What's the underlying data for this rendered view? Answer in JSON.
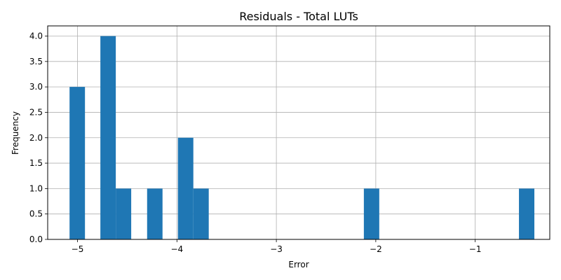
{
  "chart_data": {
    "type": "bar",
    "title": "Residuals - Total LUTs",
    "xlabel": "Error",
    "ylabel": "Frequency",
    "xlim": [
      -5.3,
      -0.25
    ],
    "ylim": [
      0,
      4.2
    ],
    "grid": true,
    "bar_color": "#1f77b4",
    "xticks": [
      -5,
      -4,
      -3,
      -2,
      -1
    ],
    "xtick_labels": [
      "−5",
      "−4",
      "−3",
      "−2",
      "−1"
    ],
    "yticks": [
      0,
      0.5,
      1,
      1.5,
      2,
      2.5,
      3,
      3.5,
      4
    ],
    "ytick_labels": [
      "0.0",
      "0.5",
      "1.0",
      "1.5",
      "2.0",
      "2.5",
      "3.0",
      "3.5",
      "4.0"
    ],
    "bins": [
      {
        "x0": -5.08,
        "x1": -4.925,
        "count": 3
      },
      {
        "x0": -4.77,
        "x1": -4.615,
        "count": 4
      },
      {
        "x0": -4.615,
        "x1": -4.46,
        "count": 1
      },
      {
        "x0": -4.3,
        "x1": -4.145,
        "count": 1
      },
      {
        "x0": -3.99,
        "x1": -3.835,
        "count": 2
      },
      {
        "x0": -3.835,
        "x1": -3.68,
        "count": 1
      },
      {
        "x0": -2.12,
        "x1": -1.965,
        "count": 1
      },
      {
        "x0": -0.56,
        "x1": -0.405,
        "count": 1
      }
    ]
  }
}
